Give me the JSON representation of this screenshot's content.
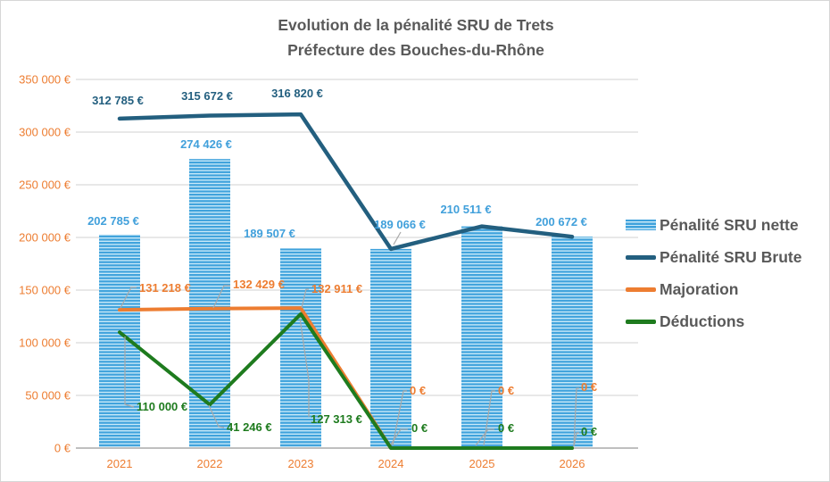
{
  "chart_data": {
    "type": "bar",
    "title": "Evolution de la pénalité SRU de Trets",
    "subtitle": "Préfecture des Bouches-du-Rhône",
    "categories": [
      "2021",
      "2022",
      "2023",
      "2024",
      "2025",
      "2026"
    ],
    "series": [
      {
        "name": "Pénalité SRU nette",
        "kind": "bar",
        "color": "#41A0DB",
        "stripe_color": "#C9E9F8",
        "base_color": "#3FA2DC",
        "values": [
          202785,
          274426,
          189507,
          189066,
          210511,
          200672
        ],
        "labels_visible": [
          true,
          true,
          true,
          true,
          true,
          true
        ]
      },
      {
        "name": "Pénalité SRU Brute",
        "kind": "line",
        "color": "#235F7F",
        "values": [
          312785,
          315672,
          316820,
          189066,
          210511,
          200672
        ],
        "labels_visible": [
          true,
          true,
          true,
          false,
          false,
          false
        ]
      },
      {
        "name": "Majoration",
        "kind": "line",
        "color": "#ED7D31",
        "values": [
          131218,
          132429,
          132911,
          0,
          0,
          0
        ],
        "labels_visible": [
          true,
          true,
          true,
          true,
          true,
          true
        ]
      },
      {
        "name": "Déductions",
        "kind": "line",
        "color": "#1E7B1E",
        "values": [
          110000,
          41246,
          127313,
          0,
          0,
          0
        ],
        "labels_visible": [
          true,
          true,
          true,
          true,
          true,
          true
        ]
      }
    ],
    "ylim": [
      0,
      350000
    ],
    "ytick_step": 50000,
    "y_tick_labels": [
      "0 €",
      "50 000 €",
      "100 000 €",
      "150 000 €",
      "200 000 €",
      "250 000 €",
      "300 000 €",
      "350 000 €"
    ],
    "grid": "horizontal",
    "gridline_color": "#D9D9D9",
    "axis_line_color": "#BFBFBF",
    "axis_text_color": "#ED7D31",
    "title_color": "#595959",
    "legend_text_color": "#595959",
    "leader_line_color": "#A8A8A8",
    "legend_position": "right",
    "currency_suffix": " €"
  }
}
